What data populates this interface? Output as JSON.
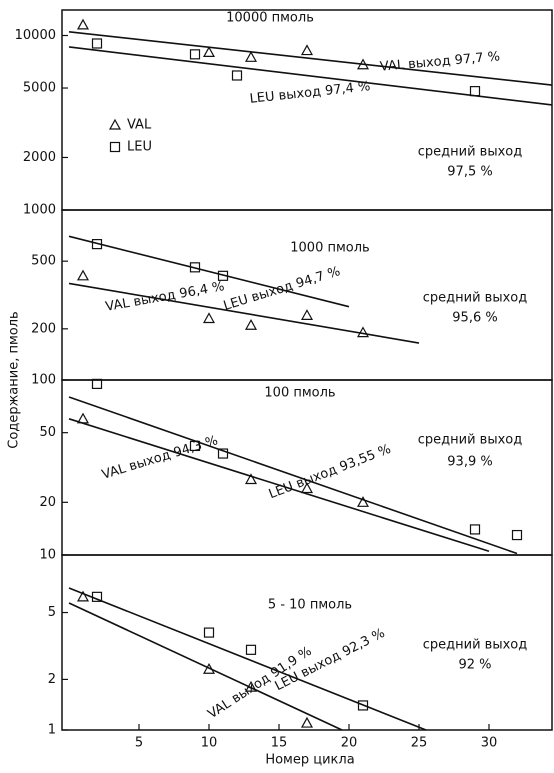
{
  "y_label": "Содержание, пмоль",
  "x_label": "Номер цикла",
  "chart_data": [
    {
      "type": "scatter",
      "scale": "log",
      "xlim": [
        -0.5,
        34.5
      ],
      "ylim": [
        1000,
        14000
      ],
      "yticks": [
        10000,
        5000,
        2000
      ],
      "annotations": [
        "10000 пмоль",
        "VAL выход   97,7 %",
        "LEU выход   97,4 %",
        "средний выход",
        "97,5 %"
      ],
      "series": [
        {
          "name": "VAL",
          "marker": "triangle",
          "x": [
            1,
            10,
            13,
            17,
            21
          ],
          "values": [
            11500,
            8000,
            7500,
            8200,
            6800
          ],
          "fit": {
            "x": [
              0,
              34.5
            ],
            "values": [
              10500,
              5200
            ]
          }
        },
        {
          "name": "LEU",
          "marker": "square",
          "x": [
            2,
            9,
            12,
            29
          ],
          "values": [
            9000,
            7800,
            5900,
            4800
          ],
          "fit": {
            "x": [
              0,
              34.5
            ],
            "values": [
              8600,
              4000
            ]
          }
        }
      ]
    },
    {
      "type": "scatter",
      "scale": "log",
      "xlim": [
        -0.5,
        34.5
      ],
      "ylim": [
        100,
        1000
      ],
      "yticks": [
        1000,
        500,
        200,
        100
      ],
      "annotations": [
        "1000 пмоль",
        "VAL выход   96,4 %",
        "LEU выход   94,7 %",
        "средний выход",
        "95,6 %"
      ],
      "series": [
        {
          "marker": "triangle",
          "x": [
            1,
            10,
            13,
            17,
            21
          ],
          "values": [
            410,
            230,
            210,
            240,
            190
          ],
          "fit": {
            "x": [
              0,
              25
            ],
            "values": [
              370,
              165
            ]
          }
        },
        {
          "marker": "square",
          "x": [
            2,
            9,
            11
          ],
          "values": [
            630,
            460,
            410
          ],
          "fit": {
            "x": [
              0,
              20
            ],
            "values": [
              700,
              270
            ]
          }
        }
      ]
    },
    {
      "type": "scatter",
      "scale": "log",
      "xlim": [
        -0.5,
        34.5
      ],
      "ylim": [
        10,
        100
      ],
      "yticks": [
        50,
        20,
        10
      ],
      "annotations": [
        "100 пмоль",
        "VAL выход   94,3 %",
        "LEU выход   93,55 %",
        "средний выход",
        "93,9 %"
      ],
      "series": [
        {
          "marker": "triangle",
          "x": [
            1,
            13,
            17,
            21
          ],
          "values": [
            60,
            27,
            24,
            20
          ],
          "fit": {
            "x": [
              0,
              30
            ],
            "values": [
              60,
              10.5
            ]
          }
        },
        {
          "marker": "square",
          "x": [
            2,
            9,
            11,
            29,
            32
          ],
          "values": [
            95,
            42,
            38,
            14,
            13
          ],
          "fit": {
            "x": [
              0,
              32
            ],
            "values": [
              80,
              10.2
            ]
          }
        }
      ]
    },
    {
      "type": "scatter",
      "scale": "log",
      "xlim": [
        -0.5,
        34.5
      ],
      "ylim": [
        1,
        11
      ],
      "yticks": [
        5,
        2,
        1
      ],
      "xticks": [
        5,
        10,
        15,
        20,
        25,
        30
      ],
      "annotations": [
        "5 - 10 пмоль",
        "VAL выход   91,9 %",
        "LEU выход   92,3 %",
        "средний выход",
        "92 %"
      ],
      "series": [
        {
          "marker": "triangle",
          "x": [
            1,
            10,
            13,
            17
          ],
          "values": [
            6.2,
            2.3,
            1.8,
            1.1
          ],
          "fit": {
            "x": [
              0,
              19.5
            ],
            "values": [
              5.7,
              1
            ]
          }
        },
        {
          "marker": "square",
          "x": [
            2,
            10,
            13,
            21
          ],
          "values": [
            6.2,
            3.8,
            3,
            1.4
          ],
          "fit": {
            "x": [
              0,
              25.5
            ],
            "values": [
              7,
              1
            ]
          }
        }
      ]
    }
  ]
}
